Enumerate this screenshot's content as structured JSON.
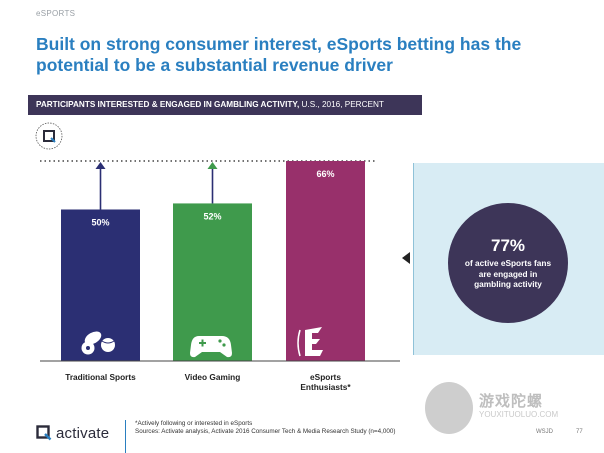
{
  "header": {
    "section": "eSPORTS",
    "title": "Built on strong consumer interest, eSports betting has the potential to be a substantial revenue driver"
  },
  "banner": {
    "title_bold": "PARTICIPANTS INTERESTED & ENGAGED IN GAMBLING ACTIVITY,",
    "title_rest": " U.S., 2016, PERCENT"
  },
  "colors": {
    "traditional": "#2b2f73",
    "video": "#3f9a4c",
    "esports": "#98306b",
    "banner": "#3d3558",
    "title": "#2a7fc0",
    "callout_bg": "#d8ecf4"
  },
  "chart_data": {
    "type": "bar",
    "title": "PARTICIPANTS INTERESTED & ENGAGED IN GAMBLING ACTIVITY, U.S., 2016, PERCENT",
    "categories": [
      "Traditional Sports",
      "Video Gaming",
      "eSports Enthusiasts*"
    ],
    "values": [
      50,
      52,
      66
    ],
    "value_labels": [
      "50%",
      "52%",
      "66%"
    ],
    "icons": [
      "sports-balls-icon",
      "game-controller-icon",
      "esports-e-icon"
    ],
    "colors": [
      "#2b2f73",
      "#3f9a4c",
      "#98306b"
    ],
    "reference_line": 66,
    "annotations": [
      "arrow from 50% to 66%",
      "arrow from 52% to 66%"
    ],
    "ylim": [
      0,
      66
    ],
    "xlabel": "",
    "ylabel": "",
    "grid": false
  },
  "callout": {
    "percent": "77%",
    "text": "of active eSports fans are engaged in gambling activity"
  },
  "footer": {
    "logo": "activate",
    "footnote": "*Actively following or interested in eSports",
    "sources": "Sources: Activate analysis, Activate 2016 Consumer Tech & Media Research Study (n=4,000)",
    "wsj": "WSJD",
    "page": "77"
  },
  "watermark": {
    "text": "游戏陀螺",
    "url": "YOUXITUOLUO.COM"
  }
}
